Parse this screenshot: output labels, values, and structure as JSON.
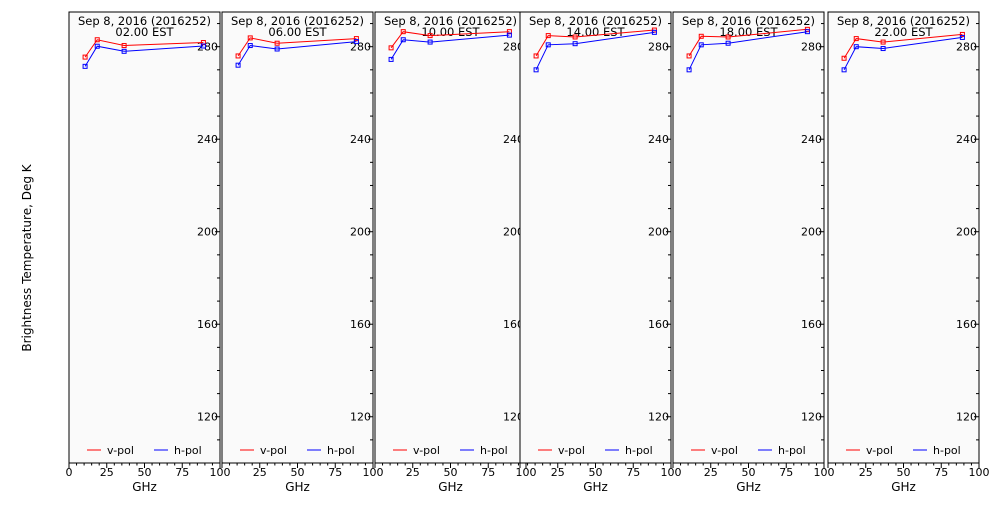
{
  "page": {
    "ylabel": "Brightness Temperature, Deg K"
  },
  "chart_data": [
    {
      "type": "line",
      "title": "Sep  8, 2016 (2016252)",
      "subtitle": "02.00 EST",
      "xlabel": "GHz",
      "ylabel": "Brightness Temperature, Deg K",
      "xlim": [
        0,
        100
      ],
      "ylim": [
        100,
        295
      ],
      "xticks": [
        0,
        25,
        50,
        75,
        100
      ],
      "yticks": [
        120,
        160,
        200,
        240,
        280
      ],
      "legend": "bottom",
      "series": [
        {
          "name": "v-pol",
          "color": "#ff0000",
          "x": [
            10.65,
            18.7,
            36.5,
            89.0
          ],
          "y": [
            275.5,
            283.0,
            280.5,
            281.8
          ]
        },
        {
          "name": "h-pol",
          "color": "#0000ff",
          "x": [
            10.65,
            18.7,
            36.5,
            89.0
          ],
          "y": [
            271.5,
            280.2,
            278.0,
            280.3
          ]
        }
      ]
    },
    {
      "type": "line",
      "title": "Sep  8, 2016 (2016252)",
      "subtitle": "06.00 EST",
      "xlabel": "GHz",
      "ylabel": "",
      "xlim": [
        0,
        100
      ],
      "ylim": [
        100,
        295
      ],
      "xticks": [
        0,
        25,
        50,
        75,
        100
      ],
      "yticks": [
        120,
        160,
        200,
        240,
        280
      ],
      "legend": "bottom",
      "series": [
        {
          "name": "v-pol",
          "color": "#ff0000",
          "x": [
            10.65,
            18.7,
            36.5,
            89.0
          ],
          "y": [
            276.0,
            283.8,
            281.5,
            283.5
          ]
        },
        {
          "name": "h-pol",
          "color": "#0000ff",
          "x": [
            10.65,
            18.7,
            36.5,
            89.0
          ],
          "y": [
            272.0,
            280.5,
            279.0,
            282.2
          ]
        }
      ]
    },
    {
      "type": "line",
      "title": "Sep  8, 2016 (2016252)",
      "subtitle": "10.00 EST",
      "xlabel": "GHz",
      "ylabel": "",
      "xlim": [
        0,
        100
      ],
      "ylim": [
        100,
        295
      ],
      "xticks": [
        0,
        25,
        50,
        75,
        100
      ],
      "yticks": [
        120,
        160,
        200,
        240,
        280
      ],
      "legend": "bottom",
      "series": [
        {
          "name": "v-pol",
          "color": "#ff0000",
          "x": [
            10.65,
            18.7,
            36.5,
            89.0
          ],
          "y": [
            279.5,
            286.5,
            284.8,
            286.5
          ]
        },
        {
          "name": "h-pol",
          "color": "#0000ff",
          "x": [
            10.65,
            18.7,
            36.5,
            89.0
          ],
          "y": [
            274.5,
            283.0,
            282.0,
            285.0
          ]
        }
      ]
    },
    {
      "type": "line",
      "title": "Sep  8, 2016 (2016252)",
      "subtitle": "14.00 EST",
      "xlabel": "GHz",
      "ylabel": "",
      "xlim": [
        0,
        100
      ],
      "ylim": [
        100,
        295
      ],
      "xticks": [
        0,
        25,
        50,
        75,
        100
      ],
      "yticks": [
        120,
        160,
        200,
        240,
        280
      ],
      "legend": "bottom",
      "series": [
        {
          "name": "v-pol",
          "color": "#ff0000",
          "x": [
            10.65,
            18.7,
            36.5,
            89.0
          ],
          "y": [
            276.0,
            284.8,
            284.2,
            287.2
          ]
        },
        {
          "name": "h-pol",
          "color": "#0000ff",
          "x": [
            10.65,
            18.7,
            36.5,
            89.0
          ],
          "y": [
            270.0,
            280.8,
            281.3,
            286.2
          ]
        }
      ]
    },
    {
      "type": "line",
      "title": "Sep  8, 2016 (2016252)",
      "subtitle": "18.00 EST",
      "xlabel": "GHz",
      "ylabel": "",
      "xlim": [
        0,
        100
      ],
      "ylim": [
        100,
        295
      ],
      "xticks": [
        0,
        25,
        50,
        75,
        100
      ],
      "yticks": [
        120,
        160,
        200,
        240,
        280
      ],
      "legend": "bottom",
      "series": [
        {
          "name": "v-pol",
          "color": "#ff0000",
          "x": [
            10.65,
            18.7,
            36.5,
            89.0
          ],
          "y": [
            276.0,
            284.5,
            284.2,
            287.5
          ]
        },
        {
          "name": "h-pol",
          "color": "#0000ff",
          "x": [
            10.65,
            18.7,
            36.5,
            89.0
          ],
          "y": [
            270.0,
            280.8,
            281.5,
            286.5
          ]
        }
      ]
    },
    {
      "type": "line",
      "title": "Sep  8, 2016 (2016252)",
      "subtitle": "22.00 EST",
      "xlabel": "GHz",
      "ylabel": "",
      "xlim": [
        0,
        100
      ],
      "ylim": [
        100,
        295
      ],
      "xticks": [
        0,
        25,
        50,
        75,
        100
      ],
      "yticks": [
        120,
        160,
        200,
        240,
        280
      ],
      "legend": "bottom",
      "series": [
        {
          "name": "v-pol",
          "color": "#ff0000",
          "x": [
            10.65,
            18.7,
            36.5,
            89.0
          ],
          "y": [
            275.0,
            283.5,
            282.0,
            285.3
          ]
        },
        {
          "name": "h-pol",
          "color": "#0000ff",
          "x": [
            10.65,
            18.7,
            36.5,
            89.0
          ],
          "y": [
            270.0,
            280.0,
            279.2,
            284.0
          ]
        }
      ]
    }
  ]
}
